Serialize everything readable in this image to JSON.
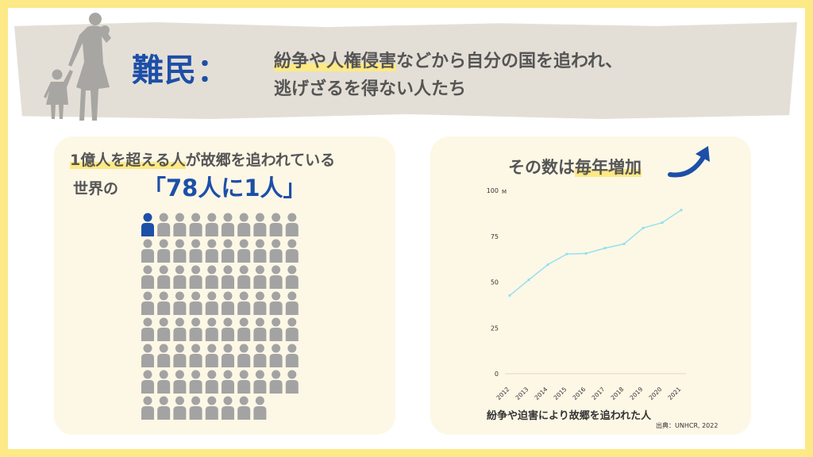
{
  "banner": {
    "term": "難民：",
    "definition_line1_highlight": "紛争や人権侵害",
    "definition_line1_rest": "などから自分の国を追われ、",
    "definition_line2": "逃げざるを得ない人たち"
  },
  "left_panel": {
    "line1_highlight": "1億人を超える人",
    "line1_rest": "が故郷を追われている",
    "line2_prefix": "世界の",
    "ratio": "「78人に1人」",
    "pictogram": {
      "columns": 10,
      "total_figures": 78,
      "highlighted_figures": 1,
      "highlight_color": "#1c4fa8",
      "default_color": "#a3a3a3"
    }
  },
  "right_panel": {
    "title_prefix": "その数は",
    "title_highlight": "毎年増加",
    "arrow_icon": "curved-up-arrow-icon",
    "caption": "紛争や迫害により故郷を追われた人",
    "source": "出典：UNHCR, 2022"
  },
  "chart_data": {
    "type": "line",
    "x": [
      "2012",
      "2013",
      "2014",
      "2015",
      "2016",
      "2017",
      "2018",
      "2019",
      "2020",
      "2021"
    ],
    "series": [
      {
        "values": [
          42.7,
          51.2,
          59.5,
          65.3,
          65.6,
          68.5,
          70.8,
          79.5,
          82.4,
          89.3
        ],
        "color": "#8fe0ee"
      }
    ],
    "yticks": [
      0,
      25,
      50,
      75,
      100
    ],
    "ylim": [
      0,
      100
    ],
    "yunit": "M",
    "grid": false
  }
}
